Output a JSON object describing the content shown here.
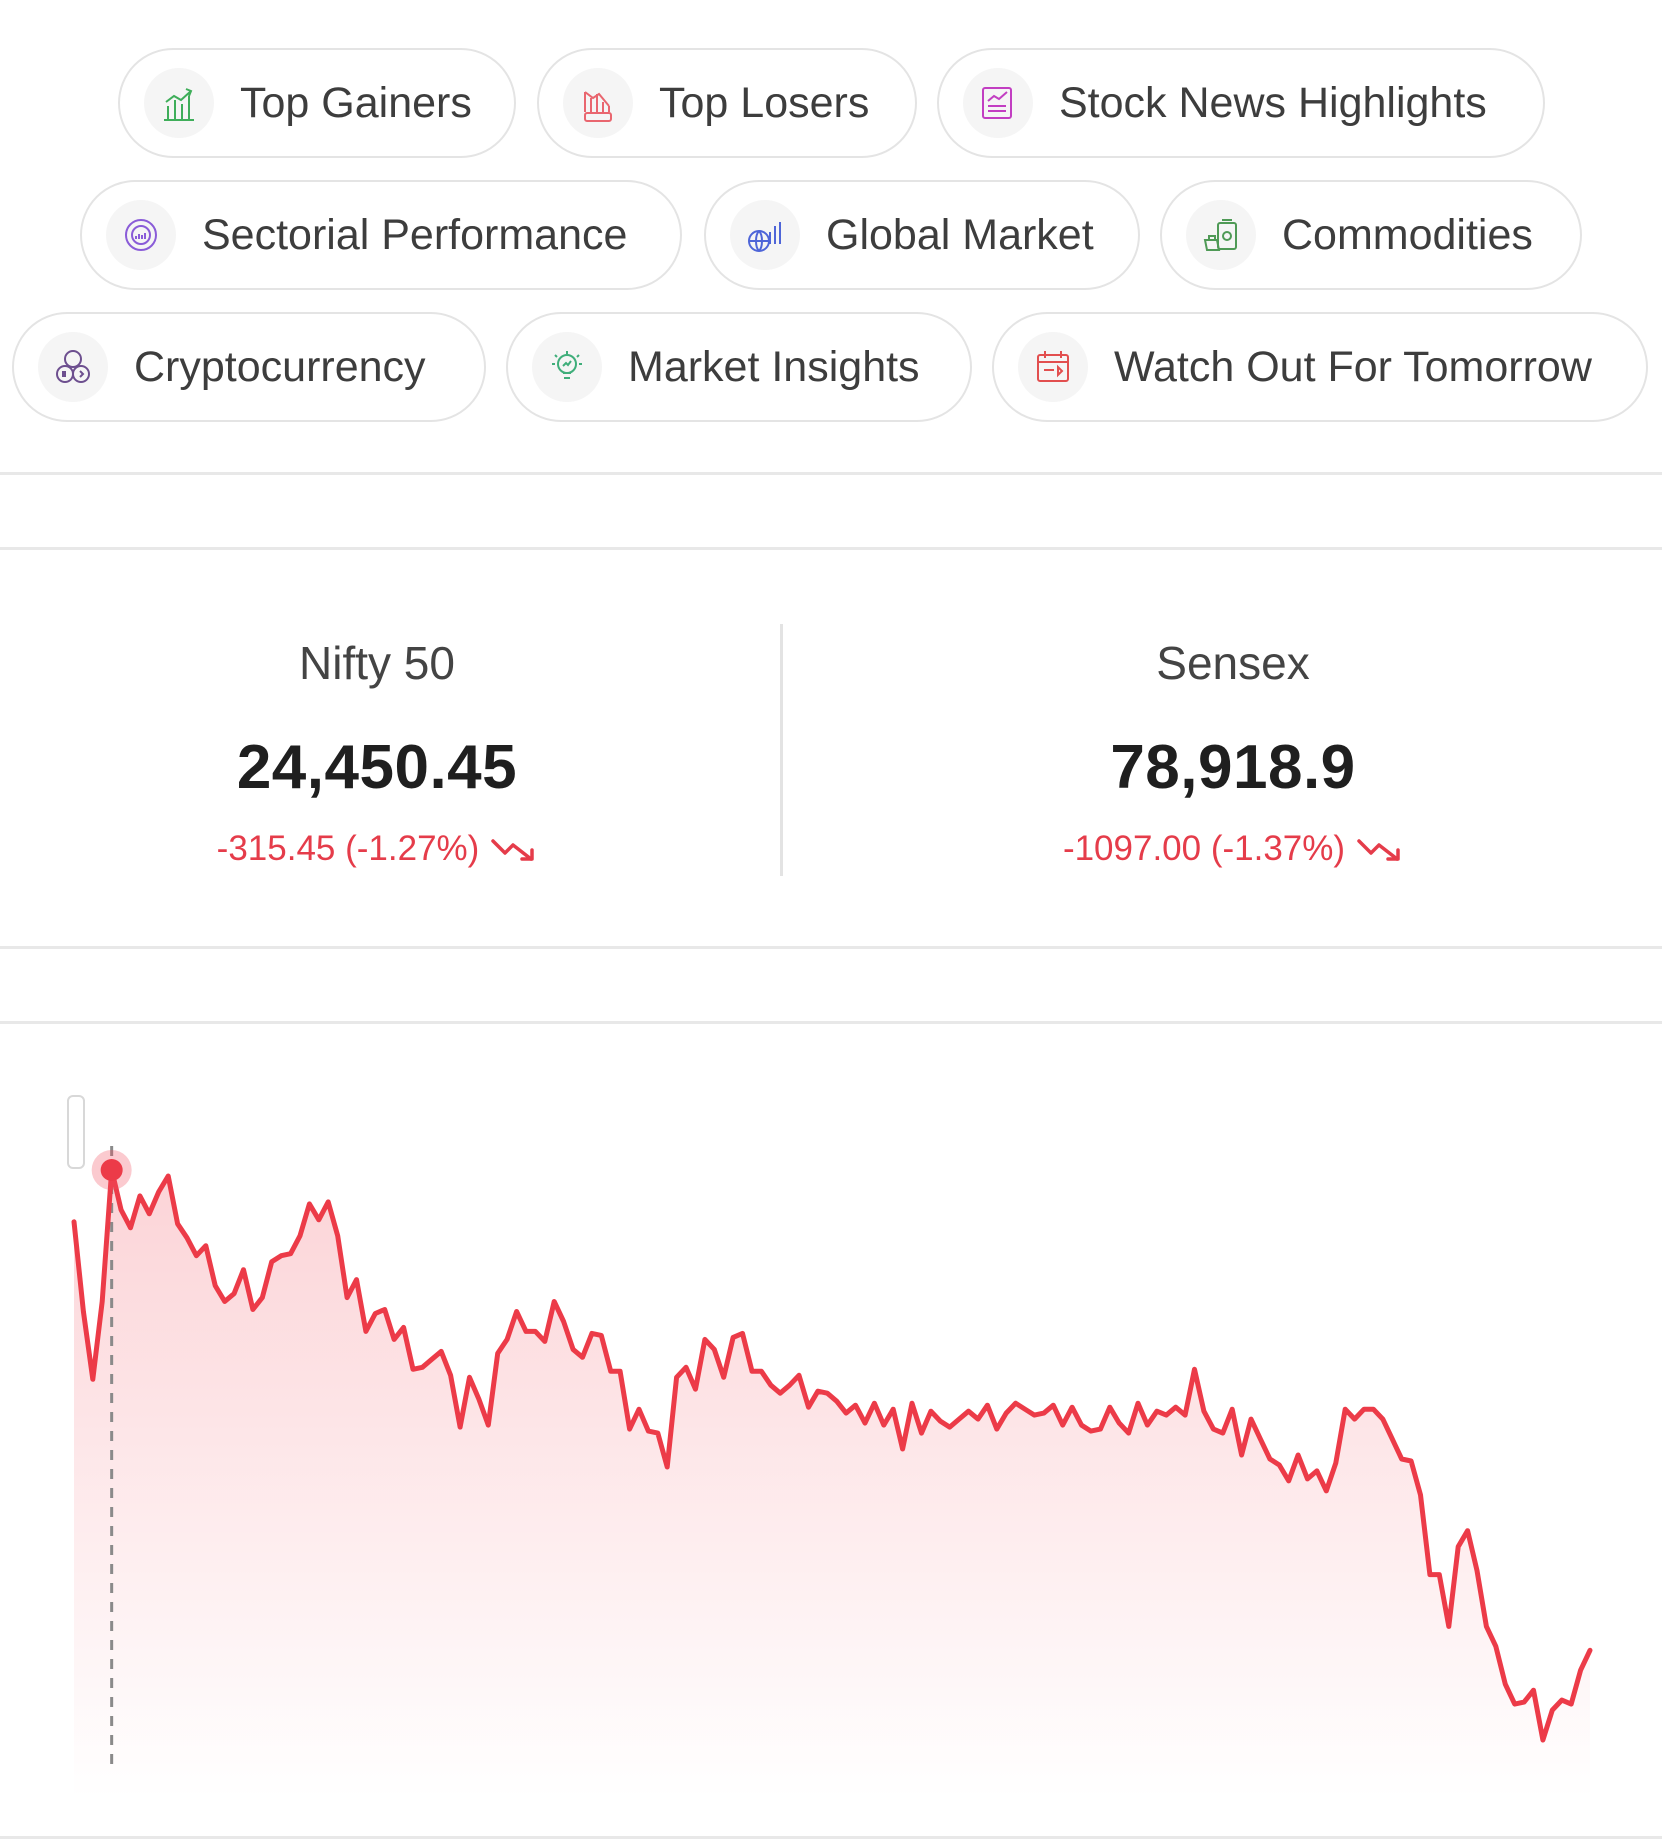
{
  "nav_chips": [
    {
      "label": "Top Gainers",
      "icon": "top-gainers-icon"
    },
    {
      "label": "Top Losers",
      "icon": "top-losers-icon"
    },
    {
      "label": "Stock News Highlights",
      "icon": "stock-news-icon"
    },
    {
      "label": "Sectorial Performance",
      "icon": "sectorial-performance-icon"
    },
    {
      "label": "Global Market",
      "icon": "global-market-icon"
    },
    {
      "label": "Commodities",
      "icon": "commodities-icon"
    },
    {
      "label": "Cryptocurrency",
      "icon": "cryptocurrency-icon"
    },
    {
      "label": "Market Insights",
      "icon": "market-insights-icon"
    },
    {
      "label": "Watch Out For Tomorrow",
      "icon": "watch-out-icon"
    }
  ],
  "indices": {
    "nifty": {
      "name": "Nifty 50",
      "value": "24,450.45",
      "change": "-315.45 (-1.27%)"
    },
    "sensex": {
      "name": "Sensex",
      "value": "78,918.9",
      "change": "-1097.00 (-1.37%)"
    }
  },
  "colors": {
    "negative": "#e53c4a",
    "chip_border": "#e4e4e4"
  },
  "chart_data": {
    "type": "area",
    "title": "",
    "xlabel": "",
    "ylabel": "",
    "grid": false,
    "highlight_index": 4,
    "values": [
      24705,
      24660,
      24626,
      24665,
      24731,
      24711,
      24702,
      24718,
      24709,
      24720,
      24728,
      24704,
      24697,
      24688,
      24693,
      24673,
      24665,
      24669,
      24681,
      24661,
      24667,
      24685,
      24688,
      24689,
      24698,
      24714,
      24706,
      24715,
      24698,
      24667,
      24676,
      24650,
      24659,
      24661,
      24646,
      24652,
      24631,
      24632,
      24636,
      24640,
      24628,
      24602,
      24627,
      24616,
      24603,
      24639,
      24646,
      24660,
      24650,
      24650,
      24645,
      24665,
      24655,
      24641,
      24637,
      24649,
      24648,
      24630,
      24630,
      24601,
      24611,
      24600,
      24599,
      24582,
      24627,
      24632,
      24621,
      24646,
      24641,
      24627,
      24647,
      24649,
      24630,
      24630,
      24623,
      24619,
      24623,
      24628,
      24612,
      24620,
      24619,
      24615,
      24609,
      24613,
      24604,
      24614,
      24603,
      24611,
      24591,
      24614,
      24599,
      24610,
      24605,
      24602,
      24606,
      24610,
      24606,
      24613,
      24601,
      24609,
      24614,
      24611,
      24608,
      24609,
      24613,
      24603,
      24612,
      24603,
      24600,
      24601,
      24612,
      24604,
      24599,
      24614,
      24603,
      24610,
      24608,
      24612,
      24608,
      24631,
      24610,
      24601,
      24599,
      24611,
      24588,
      24606,
      24596,
      24586,
      24583,
      24575,
      24588,
      24576,
      24580,
      24570,
      24584,
      24611,
      24606,
      24611,
      24611,
      24606,
      24596,
      24586,
      24585,
      24568,
      24528,
      24528,
      24502,
      24542,
      24550,
      24530,
      24502,
      24492,
      24473,
      24463,
      24464,
      24470,
      24445,
      24460,
      24465,
      24463,
      24480,
      24490
    ]
  }
}
